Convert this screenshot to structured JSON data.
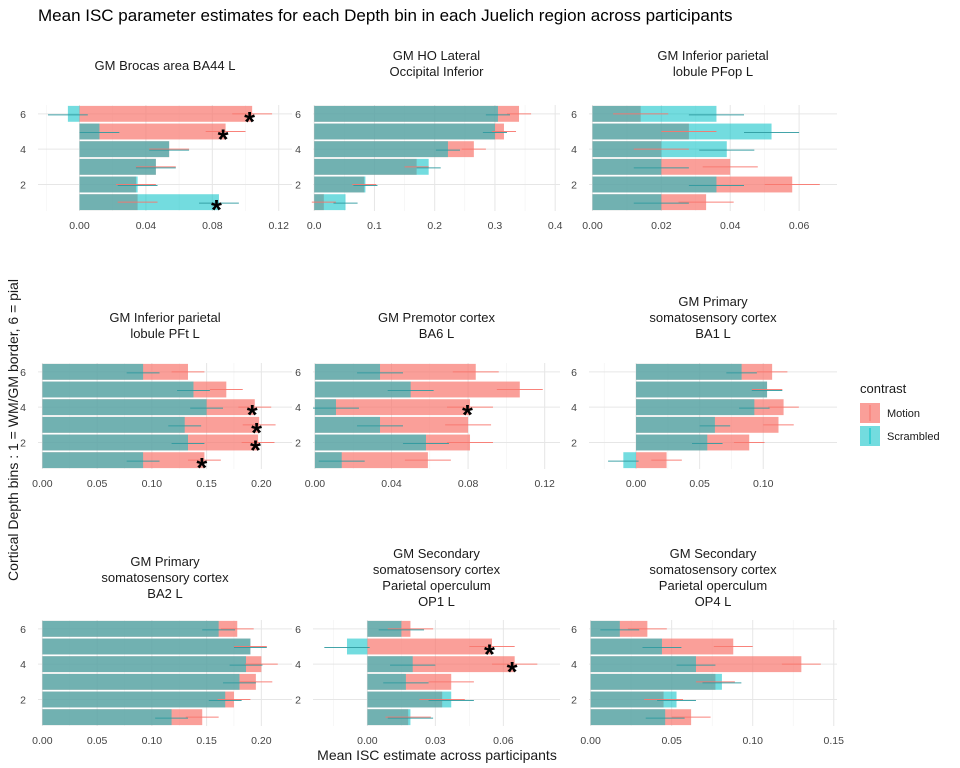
{
  "chart_data": {
    "type": "bar",
    "orientation": "horizontal",
    "title": "Mean ISC parameter estimates for each Depth bin in each Juelich region across participants",
    "xlabel": "Mean ISC estimate across participants",
    "ylabel": "Cortical Depth bins : 1 = WM/GM border, 6 = pial",
    "legend": {
      "title": "contrast",
      "position": "right",
      "entries": [
        "Motion",
        "Scrambled"
      ]
    },
    "colors": {
      "Motion": "#F8766D",
      "Scrambled": "#00BFC4"
    },
    "depth_bins": [
      1,
      2,
      3,
      4,
      5,
      6
    ],
    "y_ticks": [
      "2",
      "4",
      "6"
    ],
    "grid": true,
    "panels": [
      {
        "title_lines": [
          "GM Brocas area BA44 L"
        ],
        "xlim": [
          -0.025,
          0.128
        ],
        "x_ticks": [
          0.0,
          0.04,
          0.08,
          0.12
        ],
        "x_tick_labels": [
          "0.00",
          "0.04",
          "0.08",
          "0.12"
        ],
        "series": [
          {
            "name": "Motion",
            "values": [
              0.035,
              0.034,
              0.046,
              0.054,
              0.088,
              0.104
            ],
            "errors": [
              0.012,
              0.012,
              0.012,
              0.012,
              0.012,
              0.012
            ]
          },
          {
            "name": "Scrambled",
            "values": [
              0.084,
              0.035,
              0.046,
              0.054,
              0.012,
              -0.007
            ],
            "errors": [
              0.012,
              0.012,
              0.012,
              0.012,
              0.012,
              0.012
            ]
          }
        ],
        "significant_bins": [
          1,
          5,
          6
        ]
      },
      {
        "title_lines": [
          "GM HO Lateral",
          "Occipital Inferior"
        ],
        "xlim": [
          -0.002,
          0.408
        ],
        "x_ticks": [
          0.0,
          0.1,
          0.2,
          0.3,
          0.4
        ],
        "x_tick_labels": [
          "0.0",
          "0.1",
          "0.2",
          "0.3",
          "0.4"
        ],
        "series": [
          {
            "name": "Motion",
            "values": [
              0.016,
              0.083,
              0.17,
              0.265,
              0.315,
              0.34
            ],
            "errors": [
              0.02,
              0.02,
              0.02,
              0.02,
              0.02,
              0.02
            ]
          },
          {
            "name": "Scrambled",
            "values": [
              0.052,
              0.085,
              0.19,
              0.222,
              0.3,
              0.305
            ],
            "errors": [
              0.02,
              0.02,
              0.02,
              0.02,
              0.02,
              0.02
            ]
          }
        ],
        "significant_bins": []
      },
      {
        "title_lines": [
          "GM Inferior parietal",
          "lobule PFop L"
        ],
        "xlim": [
          -0.001,
          0.071
        ],
        "x_ticks": [
          0.0,
          0.02,
          0.04,
          0.06
        ],
        "x_tick_labels": [
          "0.00",
          "0.02",
          "0.04",
          "0.06"
        ],
        "series": [
          {
            "name": "Motion",
            "values": [
              0.033,
              0.058,
              0.04,
              0.02,
              0.028,
              0.014
            ],
            "errors": [
              0.008,
              0.008,
              0.008,
              0.008,
              0.008,
              0.008
            ]
          },
          {
            "name": "Scrambled",
            "values": [
              0.02,
              0.036,
              0.02,
              0.039,
              0.052,
              0.036
            ],
            "errors": [
              0.008,
              0.008,
              0.008,
              0.008,
              0.008,
              0.008
            ]
          }
        ],
        "significant_bins": []
      },
      {
        "title_lines": [
          "GM Inferior parietal",
          "lobule PFt L"
        ],
        "xlim": [
          -0.004,
          0.228
        ],
        "x_ticks": [
          0.0,
          0.05,
          0.1,
          0.15,
          0.2
        ],
        "x_tick_labels": [
          "0.00",
          "0.05",
          "0.10",
          "0.15",
          "0.20"
        ],
        "series": [
          {
            "name": "Motion",
            "values": [
              0.148,
              0.197,
              0.198,
              0.194,
              0.168,
              0.133
            ],
            "errors": [
              0.015,
              0.015,
              0.015,
              0.015,
              0.015,
              0.015
            ]
          },
          {
            "name": "Scrambled",
            "values": [
              0.092,
              0.133,
              0.13,
              0.15,
              0.138,
              0.092
            ],
            "errors": [
              0.015,
              0.015,
              0.015,
              0.015,
              0.015,
              0.015
            ]
          }
        ],
        "significant_bins": [
          1,
          2,
          3,
          4
        ]
      },
      {
        "title_lines": [
          "GM Premotor cortex",
          "BA6 L"
        ],
        "xlim": [
          -0.001,
          0.128
        ],
        "x_ticks": [
          0.0,
          0.04,
          0.08,
          0.12
        ],
        "x_tick_labels": [
          "0.00",
          "0.04",
          "0.08",
          "0.12"
        ],
        "series": [
          {
            "name": "Motion",
            "values": [
              0.059,
              0.081,
              0.08,
              0.081,
              0.107,
              0.084
            ],
            "errors": [
              0.012,
              0.012,
              0.012,
              0.012,
              0.012,
              0.012
            ]
          },
          {
            "name": "Scrambled",
            "values": [
              0.014,
              0.058,
              0.034,
              0.011,
              0.05,
              0.034
            ],
            "errors": [
              0.012,
              0.012,
              0.012,
              0.012,
              0.012,
              0.012
            ]
          }
        ],
        "significant_bins": [
          4
        ]
      },
      {
        "title_lines": [
          "GM Primary",
          "somatosensory cortex",
          "BA1 L"
        ],
        "xlim": [
          -0.037,
          0.158
        ],
        "x_ticks": [
          0.0,
          0.05,
          0.1
        ],
        "x_tick_labels": [
          "0.00",
          "0.05",
          "0.10"
        ],
        "series": [
          {
            "name": "Motion",
            "values": [
              0.024,
              0.089,
              0.112,
              0.116,
              0.103,
              0.107
            ],
            "errors": [
              0.012,
              0.012,
              0.012,
              0.012,
              0.012,
              0.012
            ]
          },
          {
            "name": "Scrambled",
            "values": [
              -0.01,
              0.056,
              0.062,
              0.093,
              0.103,
              0.083
            ],
            "errors": [
              0.012,
              0.012,
              0.012,
              0.012,
              0.012,
              0.012
            ]
          }
        ],
        "significant_bins": []
      },
      {
        "title_lines": [
          "GM Primary",
          "somatosensory cortex",
          "BA2 L"
        ],
        "xlim": [
          -0.004,
          0.228
        ],
        "x_ticks": [
          0.0,
          0.05,
          0.1,
          0.15,
          0.2
        ],
        "x_tick_labels": [
          "0.00",
          "0.05",
          "0.10",
          "0.15",
          "0.20"
        ],
        "series": [
          {
            "name": "Motion",
            "values": [
              0.146,
              0.175,
              0.195,
              0.2,
              0.19,
              0.178
            ],
            "errors": [
              0.015,
              0.015,
              0.015,
              0.015,
              0.015,
              0.015
            ]
          },
          {
            "name": "Scrambled",
            "values": [
              0.118,
              0.167,
              0.18,
              0.186,
              0.19,
              0.161
            ],
            "errors": [
              0.015,
              0.015,
              0.015,
              0.015,
              0.015,
              0.015
            ]
          }
        ],
        "significant_bins": []
      },
      {
        "title_lines": [
          "GM Secondary",
          "somatosensory cortex",
          "Parietal operculum",
          "OP1 L"
        ],
        "xlim": [
          -0.024,
          0.085
        ],
        "x_ticks": [
          0.0,
          0.03,
          0.06
        ],
        "x_tick_labels": [
          "0.00",
          "0.03",
          "0.06"
        ],
        "series": [
          {
            "name": "Motion",
            "values": [
              0.018,
              0.033,
              0.037,
              0.065,
              0.055,
              0.019
            ],
            "errors": [
              0.01,
              0.01,
              0.01,
              0.01,
              0.01,
              0.01
            ]
          },
          {
            "name": "Scrambled",
            "values": [
              0.019,
              0.037,
              0.017,
              0.02,
              -0.009,
              0.015
            ],
            "errors": [
              0.01,
              0.01,
              0.01,
              0.01,
              0.01,
              0.01
            ]
          }
        ],
        "significant_bins": [
          4,
          5
        ]
      },
      {
        "title_lines": [
          "GM Secondary",
          "somatosensory cortex",
          "Parietal operculum",
          "OP4 L"
        ],
        "xlim": [
          -0.001,
          0.152
        ],
        "x_ticks": [
          0.0,
          0.05,
          0.1,
          0.15
        ],
        "x_tick_labels": [
          "0.00",
          "0.05",
          "0.10",
          "0.15"
        ],
        "series": [
          {
            "name": "Motion",
            "values": [
              0.062,
              0.045,
              0.077,
              0.13,
              0.088,
              0.035
            ],
            "errors": [
              0.012,
              0.012,
              0.012,
              0.012,
              0.012,
              0.012
            ]
          },
          {
            "name": "Scrambled",
            "values": [
              0.046,
              0.053,
              0.081,
              0.065,
              0.044,
              0.018
            ],
            "errors": [
              0.012,
              0.012,
              0.012,
              0.012,
              0.012,
              0.012
            ]
          }
        ],
        "significant_bins": []
      }
    ]
  }
}
